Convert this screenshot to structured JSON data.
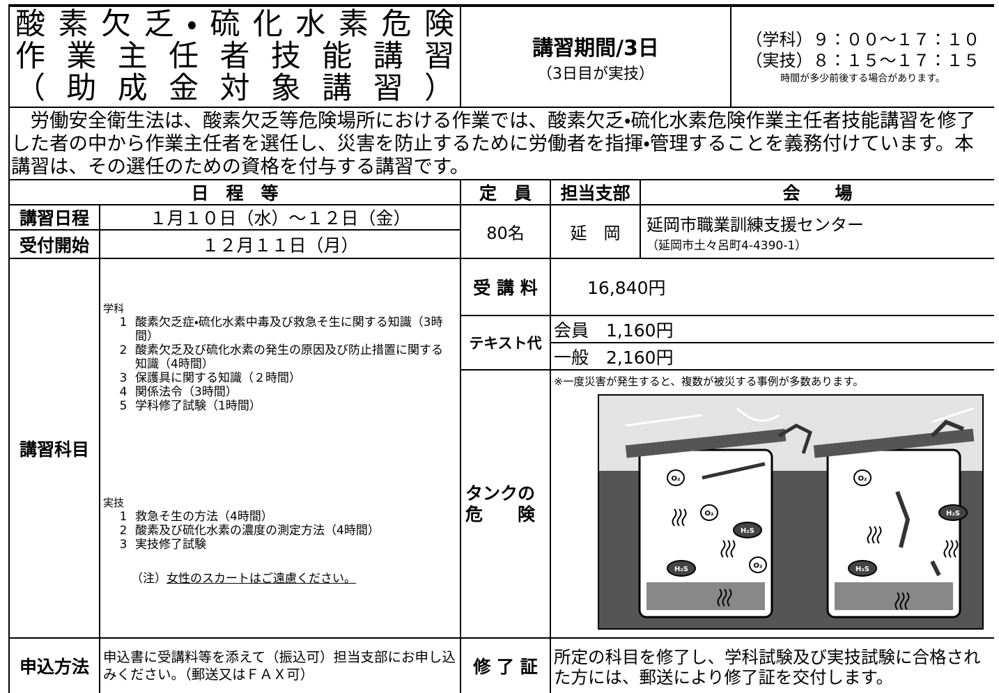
{
  "header": {
    "title_lines": [
      "酸素欠乏・硫化水素危険",
      "作業主任者技能講習",
      "（助成金対象講習）"
    ],
    "period": "講習期間/3日",
    "period_note": "（3日目が実技）",
    "times": [
      "（学科）９：００～１７：１０",
      "（実技）８：１５～１７：１５"
    ],
    "times_note": "時間が多少前後する場合があります。"
  },
  "description": "労働安全衛生法は、酸素欠乏等危険場所における作業では、酸素欠乏・硫化水素危険作業主任者技能講習を修了した者の中から作業主任者を選任し、災害を防止するために労働者を指揮・管理することを義務付けています。本講習は、その選任のための資格を付与する講習です。",
  "table": {
    "headers": {
      "schedule": "日　程　等",
      "capacity": "定　員",
      "branch": "担当支部",
      "venue": "会　　場"
    },
    "dates": {
      "label": "講習日程",
      "value": "１月１０日（水）～１２日（金）"
    },
    "reception": {
      "label": "受付開始",
      "value": "１２月１１日（月）"
    },
    "capacity": "80名",
    "branch": "延　岡",
    "venue": "延岡市職業訓練支援センター",
    "venue_address": "（延岡市土々呂町4-4390-1）",
    "curriculum": {
      "label": "講習科目",
      "lecture_heading": "学科",
      "lecture": [
        {
          "no": "1",
          "text": "酸素欠乏症・硫化水素中毒及び救急そ生に関する知識（3時間）"
        },
        {
          "no": "2",
          "text": "酸素欠乏及び硫化水素の発生の原因及び防止措置に関する知識（4時間）"
        },
        {
          "no": "3",
          "text": "保護具に関する知識（２時間）"
        },
        {
          "no": "4",
          "text": "関係法令（3時間）"
        },
        {
          "no": "5",
          "text": "学科修了試験（1時間）"
        }
      ],
      "practical_heading": "実技",
      "practical": [
        {
          "no": "1",
          "text": "救急そ生の方法（4時間）"
        },
        {
          "no": "2",
          "text": "酸素及び硫化水素の濃度の測定方法（4時間）"
        },
        {
          "no": "3",
          "text": "実技修了試験"
        }
      ],
      "note_prefix": "（注）",
      "note": "女性のスカートはご遠慮ください。"
    },
    "fee": {
      "label": "受 講 料",
      "value": "16,840円"
    },
    "textbook": {
      "label": "テキスト代",
      "member": "会員　1,160円",
      "general": "一般　2,160円"
    },
    "danger": {
      "label_lines": [
        "タンクの",
        "危　　険"
      ],
      "note": "※一度災害が発生すると、複数が被災する事例が多数あります。",
      "illustration_labels": [
        "O₂",
        "H₂S"
      ]
    },
    "application": {
      "label": "申込方法",
      "text": "申込書に受講料等を添えて（振込可）担当支部にお申し込みください。（郵送又はＦＡＸ可）"
    },
    "certificate": {
      "label": "修 了 証",
      "text": "所定の科目を修了し、学科試験及び実技試験に合格された方には、郵送により修了証を交付します。"
    }
  }
}
